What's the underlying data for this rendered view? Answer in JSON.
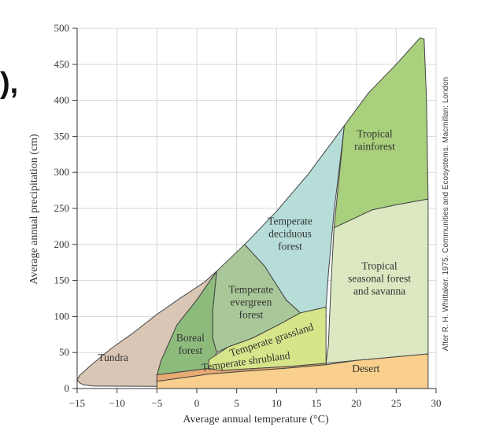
{
  "page": {
    "background": "#ffffff",
    "fragment_text": "),"
  },
  "chart_data": {
    "type": "area",
    "title": "",
    "xlabel": "Average annual temperature (°C)",
    "ylabel": "Average annual precipitation (cm)",
    "xlim": [
      -15,
      30
    ],
    "ylim": [
      0,
      500
    ],
    "xticks": [
      -15,
      -10,
      -5,
      0,
      5,
      10,
      15,
      20,
      25,
      30
    ],
    "yticks": [
      0,
      50,
      100,
      150,
      200,
      250,
      300,
      350,
      400,
      450,
      500
    ],
    "grid": true,
    "credit": "After R. H. Whittaker. 1975. Communities and Ecosystems. Macmillan: London",
    "outline_color": "#444444",
    "regions": [
      {
        "name": "Tundra",
        "color": "#d9c6b4",
        "label_lines": [
          "Tundra"
        ],
        "label_pos": [
          -10.5,
          38
        ],
        "points": [
          [
            -15,
            12
          ],
          [
            -14.7,
            8
          ],
          [
            -14.2,
            5
          ],
          [
            -13,
            3.5
          ],
          [
            -5,
            3
          ],
          [
            -5,
            18
          ],
          [
            -4.5,
            38
          ],
          [
            -2.5,
            88
          ],
          [
            0,
            123
          ],
          [
            2.5,
            163
          ],
          [
            1,
            148
          ],
          [
            -2,
            126
          ],
          [
            -5,
            103
          ],
          [
            -8,
            77
          ],
          [
            -10.8,
            55
          ],
          [
            -13.2,
            33
          ],
          [
            -14.7,
            18
          ]
        ]
      },
      {
        "name": "Boreal forest",
        "color": "#8dbb7c",
        "label_lines": [
          "Boreal",
          "forest"
        ],
        "label_pos": [
          -0.8,
          57
        ],
        "points": [
          [
            -5,
            18
          ],
          [
            -4.5,
            38
          ],
          [
            -2.5,
            88
          ],
          [
            0,
            123
          ],
          [
            2.5,
            163
          ],
          [
            2,
            108
          ],
          [
            2,
            70
          ],
          [
            2.5,
            50
          ],
          [
            1.5,
            28
          ],
          [
            -5,
            19
          ]
        ]
      },
      {
        "name": "Temperate evergreen forest",
        "color": "#a9c89a",
        "label_lines": [
          "Temperate",
          "evergreen",
          "forest"
        ],
        "label_pos": [
          6.8,
          115
        ],
        "points": [
          [
            2.5,
            163
          ],
          [
            6,
            200
          ],
          [
            8.5,
            170
          ],
          [
            11.2,
            123
          ],
          [
            13,
            105
          ],
          [
            10,
            87
          ],
          [
            7,
            70
          ],
          [
            4,
            58
          ],
          [
            2.5,
            50
          ],
          [
            2,
            70
          ],
          [
            2,
            108
          ]
        ]
      },
      {
        "name": "Temperate deciduous forest",
        "color": "#b7ddd9",
        "label_lines": [
          "Temperate",
          "deciduous",
          "forest"
        ],
        "label_pos": [
          11.7,
          210
        ],
        "points": [
          [
            6,
            200
          ],
          [
            10,
            246
          ],
          [
            14,
            298
          ],
          [
            18.5,
            365
          ],
          [
            17.2,
            245
          ],
          [
            16.5,
            160
          ],
          [
            16.2,
            113
          ],
          [
            13,
            105
          ],
          [
            11.2,
            123
          ],
          [
            8.5,
            170
          ]
        ]
      },
      {
        "name": "Tropical rainforest",
        "color": "#a9d07c",
        "label_lines": [
          "Tropical",
          "rainforest"
        ],
        "label_pos": [
          22.3,
          340
        ],
        "points": [
          [
            18.5,
            365
          ],
          [
            21.5,
            410
          ],
          [
            25,
            450
          ],
          [
            28,
            487
          ],
          [
            28.5,
            485
          ],
          [
            28.8,
            400
          ],
          [
            29,
            263
          ],
          [
            25,
            255
          ],
          [
            22,
            248
          ],
          [
            17.2,
            223
          ]
        ]
      },
      {
        "name": "Tropical seasonal forest and savanna",
        "color": "#dbe8c1",
        "label_lines": [
          "Tropical",
          "seasonal forest",
          "and savanna"
        ],
        "label_pos": [
          22.9,
          148
        ],
        "points": [
          [
            17.2,
            223
          ],
          [
            22,
            248
          ],
          [
            25,
            255
          ],
          [
            29,
            263
          ],
          [
            29,
            48
          ],
          [
            24,
            43
          ],
          [
            20,
            39
          ],
          [
            16.2,
            35
          ],
          [
            16.5,
            60
          ],
          [
            16.8,
            140
          ]
        ]
      },
      {
        "name": "Temperate grassland",
        "color": "#d6e58a",
        "label_lines": [
          "Temperate grassland"
        ],
        "label_pos": [
          9.5,
          63
        ],
        "label_rotate": -18,
        "points": [
          [
            1.5,
            40
          ],
          [
            4,
            58
          ],
          [
            7,
            70
          ],
          [
            10,
            87
          ],
          [
            13,
            105
          ],
          [
            16.2,
            113
          ],
          [
            16.2,
            35
          ],
          [
            12,
            31
          ],
          [
            9,
            29
          ],
          [
            6,
            27
          ],
          [
            3,
            25
          ],
          [
            1.5,
            24
          ]
        ]
      },
      {
        "name": "Temperate shrubland",
        "color": "#e7ab74",
        "label_lines": [
          "Temperate shrubland"
        ],
        "label_pos": [
          6.2,
          33
        ],
        "label_rotate": -8,
        "points": [
          [
            -5,
            19
          ],
          [
            1.5,
            28
          ],
          [
            3,
            25
          ],
          [
            6,
            27
          ],
          [
            9,
            29
          ],
          [
            12,
            31
          ],
          [
            16.2,
            35
          ],
          [
            16.2,
            33
          ],
          [
            11,
            28
          ],
          [
            6,
            24
          ],
          [
            1.5,
            20
          ],
          [
            -5,
            10
          ]
        ]
      },
      {
        "name": "Desert",
        "color": "#f8cf8c",
        "label_lines": [
          "Desert"
        ],
        "label_pos": [
          21.2,
          23
        ],
        "points": [
          [
            -5,
            10
          ],
          [
            1.5,
            20
          ],
          [
            6,
            24
          ],
          [
            11,
            28
          ],
          [
            16.2,
            33
          ],
          [
            20,
            39
          ],
          [
            24,
            43
          ],
          [
            29,
            48
          ],
          [
            29,
            0
          ],
          [
            -5,
            0
          ]
        ]
      }
    ]
  }
}
